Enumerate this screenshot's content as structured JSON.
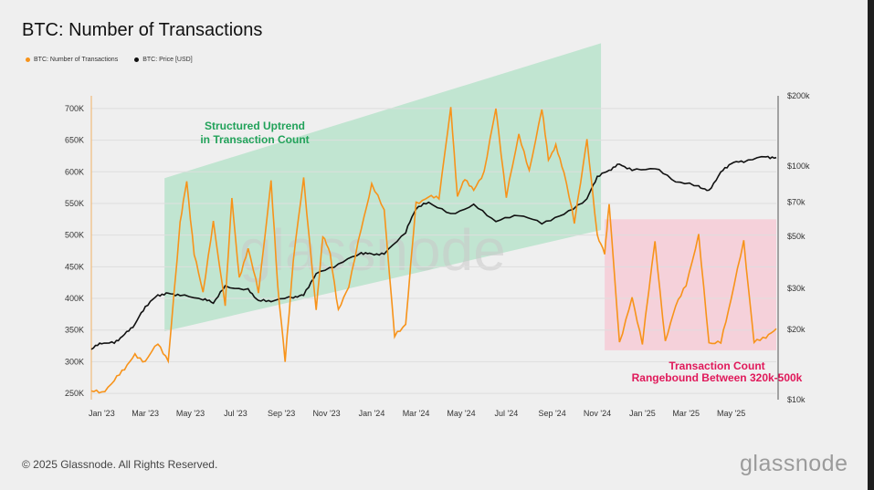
{
  "title": "BTC: Number of Transactions",
  "legend": [
    {
      "label": "BTC: Number of Transactions",
      "color": "#f7931a"
    },
    {
      "label": "BTC: Price [USD]",
      "color": "#111111"
    }
  ],
  "footer": "© 2025 Glassnode. All Rights Reserved.",
  "brand": "glassnode",
  "watermark": "glassnode",
  "annotations": {
    "green_line1": "Structured Uptrend",
    "green_line2": "in Transaction Count",
    "red_line1": "Transaction Count",
    "red_line2": "Rangebound Between 320k-500k"
  },
  "colors": {
    "transactions": "#f7931a",
    "price": "#111111",
    "green_band": "#b9e3cb",
    "red_band": "#f6cbd6"
  },
  "chart_data": {
    "type": "line",
    "title": "BTC: Number of Transactions",
    "x_start": "2023-01-01",
    "x_end": "2025-07-15",
    "x_ticks": [
      {
        "label": "Jan '23",
        "date": "2023-01-15"
      },
      {
        "label": "Mar '23",
        "date": "2023-03-15"
      },
      {
        "label": "May '23",
        "date": "2023-05-15"
      },
      {
        "label": "Jul '23",
        "date": "2023-07-15"
      },
      {
        "label": "Sep '23",
        "date": "2023-09-15"
      },
      {
        "label": "Nov '23",
        "date": "2023-11-15"
      },
      {
        "label": "Jan '24",
        "date": "2024-01-15"
      },
      {
        "label": "Mar '24",
        "date": "2024-03-15"
      },
      {
        "label": "May '24",
        "date": "2024-05-15"
      },
      {
        "label": "Jul '24",
        "date": "2024-07-15"
      },
      {
        "label": "Sep '24",
        "date": "2024-09-15"
      },
      {
        "label": "Nov '24",
        "date": "2024-11-15"
      },
      {
        "label": "Jan '25",
        "date": "2025-01-15"
      },
      {
        "label": "Mar '25",
        "date": "2025-03-15"
      },
      {
        "label": "May '25",
        "date": "2025-05-15"
      }
    ],
    "y_left": {
      "min": 240000,
      "max": 720000,
      "ticks": [
        250000,
        300000,
        350000,
        400000,
        450000,
        500000,
        550000,
        600000,
        650000,
        700000
      ],
      "tick_labels": [
        "250K",
        "300K",
        "350K",
        "400K",
        "450K",
        "500K",
        "550K",
        "600K",
        "650K",
        "700K"
      ]
    },
    "y_right": {
      "scale": "log",
      "min": 10000,
      "max": 200000,
      "ticks": [
        10000,
        20000,
        30000,
        50000,
        70000,
        100000,
        200000
      ],
      "tick_labels": [
        "$10k",
        "$20k",
        "$30k",
        "$50k",
        "$70k",
        "$100k",
        "$200k"
      ]
    },
    "green_band": {
      "from": {
        "date": "2023-04-10",
        "lower": 348000,
        "upper": 590000
      },
      "to": {
        "date": "2024-11-20",
        "lower": 508000,
        "upper": 803000
      }
    },
    "red_band": {
      "x_from": "2024-11-25",
      "x_to": "2025-07-15",
      "y_from": 318000,
      "y_to": 525000
    },
    "series": [
      {
        "name": "BTC: Number of Transactions",
        "axis": "left",
        "x": [
          "2023-01-01",
          "2023-01-15",
          "2023-02-01",
          "2023-02-15",
          "2023-03-01",
          "2023-03-15",
          "2023-04-01",
          "2023-04-15",
          "2023-05-01",
          "2023-05-10",
          "2023-05-20",
          "2023-06-01",
          "2023-06-15",
          "2023-07-01",
          "2023-07-10",
          "2023-07-20",
          "2023-08-01",
          "2023-08-15",
          "2023-09-01",
          "2023-09-10",
          "2023-09-20",
          "2023-10-01",
          "2023-10-15",
          "2023-11-01",
          "2023-11-10",
          "2023-11-20",
          "2023-12-01",
          "2023-12-15",
          "2024-01-01",
          "2024-01-15",
          "2024-02-01",
          "2024-02-15",
          "2024-03-01",
          "2024-03-15",
          "2024-04-01",
          "2024-04-15",
          "2024-05-01",
          "2024-05-10",
          "2024-05-20",
          "2024-06-01",
          "2024-06-15",
          "2024-07-01",
          "2024-07-15",
          "2024-08-01",
          "2024-08-15",
          "2024-09-01",
          "2024-09-10",
          "2024-09-20",
          "2024-10-01",
          "2024-10-15",
          "2024-11-01",
          "2024-11-15",
          "2024-11-25",
          "2024-12-01",
          "2024-12-15",
          "2025-01-01",
          "2025-01-15",
          "2025-02-01",
          "2025-02-15",
          "2025-03-01",
          "2025-03-15",
          "2025-04-01",
          "2025-04-15",
          "2025-05-01",
          "2025-05-15",
          "2025-06-01",
          "2025-06-15",
          "2025-07-01",
          "2025-07-15"
        ],
        "values": [
          255000,
          250000,
          270000,
          290000,
          310000,
          300000,
          330000,
          300000,
          520000,
          585000,
          470000,
          410000,
          520000,
          390000,
          560000,
          430000,
          480000,
          410000,
          585000,
          420000,
          300000,
          460000,
          590000,
          380000,
          500000,
          470000,
          380000,
          420000,
          510000,
          580000,
          540000,
          340000,
          360000,
          550000,
          560000,
          560000,
          700000,
          560000,
          590000,
          570000,
          600000,
          700000,
          560000,
          660000,
          600000,
          700000,
          620000,
          640000,
          600000,
          520000,
          650000,
          500000,
          470000,
          550000,
          330000,
          400000,
          330000,
          490000,
          330000,
          390000,
          420000,
          500000,
          330000,
          330000,
          400000,
          490000,
          330000,
          340000,
          350000
        ]
      },
      {
        "name": "BTC: Price [USD]",
        "axis": "right",
        "x": [
          "2023-01-01",
          "2023-01-15",
          "2023-02-01",
          "2023-02-15",
          "2023-03-01",
          "2023-03-15",
          "2023-04-01",
          "2023-04-15",
          "2023-05-01",
          "2023-06-01",
          "2023-06-15",
          "2023-07-01",
          "2023-08-01",
          "2023-08-15",
          "2023-09-01",
          "2023-10-01",
          "2023-10-15",
          "2023-11-01",
          "2023-12-01",
          "2024-01-01",
          "2024-01-15",
          "2024-02-01",
          "2024-03-01",
          "2024-03-15",
          "2024-04-01",
          "2024-05-01",
          "2024-06-01",
          "2024-07-01",
          "2024-08-01",
          "2024-09-01",
          "2024-10-01",
          "2024-11-01",
          "2024-11-15",
          "2024-12-01",
          "2024-12-15",
          "2025-01-01",
          "2025-02-01",
          "2025-03-01",
          "2025-04-01",
          "2025-04-15",
          "2025-05-01",
          "2025-05-15",
          "2025-06-01",
          "2025-07-01",
          "2025-07-15"
        ],
        "values": [
          16500,
          17500,
          17500,
          19000,
          21000,
          25000,
          28000,
          28500,
          28000,
          27000,
          26000,
          30500,
          29500,
          26500,
          26500,
          27500,
          28000,
          34500,
          38000,
          42500,
          42000,
          42000,
          52000,
          66000,
          70000,
          62000,
          68000,
          58000,
          62000,
          57000,
          62000,
          72000,
          90000,
          96000,
          102000,
          96000,
          98000,
          86000,
          82000,
          78000,
          94000,
          103000,
          105000,
          110000,
          108000
        ]
      }
    ]
  }
}
